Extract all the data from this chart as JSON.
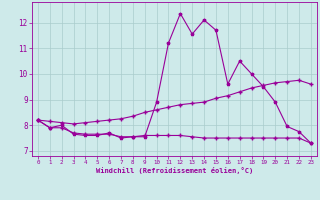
{
  "xlabel": "Windchill (Refroidissement éolien,°C)",
  "bg_color": "#ceeaea",
  "line_color": "#990099",
  "grid_color": "#aacccc",
  "x": [
    0,
    1,
    2,
    3,
    4,
    5,
    6,
    7,
    8,
    9,
    10,
    11,
    12,
    13,
    14,
    15,
    16,
    17,
    18,
    19,
    20,
    21,
    22,
    23
  ],
  "line1": [
    8.2,
    7.9,
    8.0,
    7.65,
    7.6,
    7.6,
    7.7,
    7.5,
    7.55,
    7.55,
    8.9,
    11.2,
    12.35,
    11.55,
    12.1,
    11.7,
    9.6,
    10.5,
    10.0,
    9.5,
    8.9,
    7.95,
    7.75,
    7.3
  ],
  "line2": [
    8.2,
    7.9,
    7.9,
    7.7,
    7.65,
    7.65,
    7.65,
    7.55,
    7.55,
    7.6,
    7.6,
    7.6,
    7.6,
    7.55,
    7.5,
    7.5,
    7.5,
    7.5,
    7.5,
    7.5,
    7.5,
    7.5,
    7.5,
    7.3
  ],
  "line3": [
    8.2,
    8.15,
    8.1,
    8.05,
    8.1,
    8.15,
    8.2,
    8.25,
    8.35,
    8.5,
    8.6,
    8.7,
    8.8,
    8.85,
    8.9,
    9.05,
    9.15,
    9.3,
    9.45,
    9.55,
    9.65,
    9.7,
    9.75,
    9.6
  ],
  "xlim": [
    -0.5,
    23.5
  ],
  "ylim": [
    6.8,
    12.8
  ],
  "yticks": [
    7,
    8,
    9,
    10,
    11,
    12
  ],
  "xticks": [
    0,
    1,
    2,
    3,
    4,
    5,
    6,
    7,
    8,
    9,
    10,
    11,
    12,
    13,
    14,
    15,
    16,
    17,
    18,
    19,
    20,
    21,
    22,
    23
  ]
}
